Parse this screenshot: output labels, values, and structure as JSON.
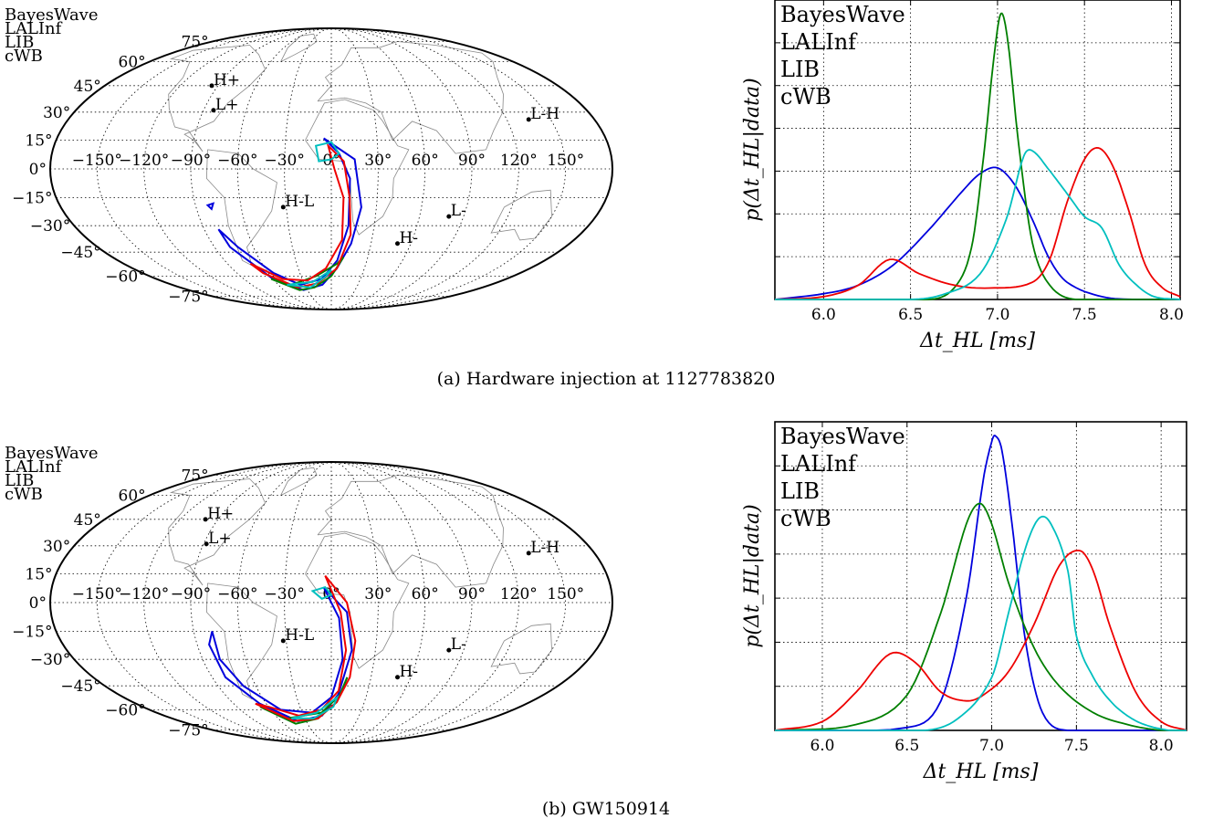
{
  "captions": {
    "a": "(a) Hardware injection at 1127783820",
    "b": "(b) GW150914"
  },
  "colors": {
    "BayesWave": "#0000dd",
    "LALInf": "#007f00",
    "LIB": "#ee0000",
    "cWB": "#00bfbf",
    "grid": "#000000",
    "coast": "#888888"
  },
  "legend": [
    "BayesWave",
    "LALInf",
    "LIB",
    "cWB"
  ],
  "skymap": {
    "lat_labels": [
      "75°",
      "60°",
      "45°",
      "30°",
      "15°",
      "0°",
      "−15°",
      "−30°",
      "−45°",
      "−60°",
      "−75°"
    ],
    "lon_labels": [
      "−150°",
      "−120°",
      "−90°",
      "−60°",
      "−30°",
      "0°",
      "30°",
      "60°",
      "90°",
      "120°",
      "150°"
    ],
    "markers": [
      "H+",
      "L+",
      "L-H",
      "H-L",
      "L-",
      "H-"
    ]
  },
  "chart_data": [
    {
      "type": "line",
      "panel": "a",
      "xlabel": "Δt_HL [ms]",
      "ylabel": "p(Δt_HL|data)",
      "xlim": [
        5.72,
        8.05
      ],
      "xticks": [
        "6.0",
        "6.5",
        "7.0",
        "7.5",
        "8.0"
      ],
      "grid": true,
      "legend_position": "top-left",
      "series": [
        {
          "name": "BayesWave",
          "x": [
            5.72,
            6.0,
            6.2,
            6.4,
            6.6,
            6.8,
            6.9,
            7.0,
            7.1,
            7.2,
            7.3,
            7.4,
            7.6,
            7.8,
            8.05
          ],
          "y": [
            0.0,
            0.02,
            0.05,
            0.12,
            0.24,
            0.38,
            0.44,
            0.46,
            0.4,
            0.28,
            0.14,
            0.06,
            0.01,
            0.0,
            0.0
          ]
        },
        {
          "name": "LALInf",
          "x": [
            5.72,
            6.6,
            6.75,
            6.85,
            6.92,
            6.98,
            7.02,
            7.06,
            7.12,
            7.2,
            7.3,
            7.45,
            8.05
          ],
          "y": [
            0.0,
            0.0,
            0.04,
            0.18,
            0.5,
            0.85,
            1.0,
            0.9,
            0.55,
            0.2,
            0.05,
            0.0,
            0.0
          ]
        },
        {
          "name": "LIB",
          "x": [
            5.72,
            6.0,
            6.2,
            6.38,
            6.55,
            6.75,
            6.95,
            7.2,
            7.3,
            7.4,
            7.5,
            7.58,
            7.66,
            7.75,
            7.85,
            7.95,
            8.05
          ],
          "y": [
            0.0,
            0.01,
            0.05,
            0.14,
            0.09,
            0.05,
            0.04,
            0.06,
            0.14,
            0.34,
            0.49,
            0.53,
            0.47,
            0.32,
            0.12,
            0.04,
            0.01
          ]
        },
        {
          "name": "cWB",
          "x": [
            5.72,
            6.5,
            6.7,
            6.9,
            7.05,
            7.15,
            7.2,
            7.3,
            7.4,
            7.5,
            7.6,
            7.7,
            7.8,
            7.9,
            8.05
          ],
          "y": [
            0.0,
            0.0,
            0.02,
            0.09,
            0.28,
            0.5,
            0.52,
            0.45,
            0.37,
            0.29,
            0.25,
            0.12,
            0.05,
            0.01,
            0.0
          ]
        }
      ]
    },
    {
      "type": "line",
      "panel": "b",
      "xlabel": "Δt_HL [ms]",
      "ylabel": "p(Δt_HL|data)",
      "xlim": [
        5.72,
        8.15
      ],
      "xticks": [
        "6.0",
        "6.5",
        "7.0",
        "7.5",
        "8.0"
      ],
      "grid": true,
      "legend_position": "top-left",
      "series": [
        {
          "name": "BayesWave",
          "x": [
            5.72,
            6.5,
            6.7,
            6.85,
            6.95,
            7.0,
            7.02,
            7.06,
            7.12,
            7.2,
            7.3,
            7.45,
            8.15
          ],
          "y": [
            0.0,
            0.01,
            0.1,
            0.45,
            0.85,
            0.98,
            1.0,
            0.95,
            0.7,
            0.3,
            0.06,
            0.0,
            0.0
          ]
        },
        {
          "name": "LALInf",
          "x": [
            5.72,
            6.2,
            6.5,
            6.7,
            6.85,
            6.93,
            7.0,
            7.1,
            7.25,
            7.4,
            7.6,
            7.8,
            8.0,
            8.15
          ],
          "y": [
            0.0,
            0.02,
            0.12,
            0.4,
            0.7,
            0.77,
            0.7,
            0.5,
            0.28,
            0.15,
            0.06,
            0.02,
            0.0,
            0.0
          ]
        },
        {
          "name": "LIB",
          "x": [
            5.72,
            6.0,
            6.2,
            6.4,
            6.55,
            6.7,
            6.85,
            6.95,
            7.1,
            7.25,
            7.4,
            7.52,
            7.6,
            7.7,
            7.85,
            8.0,
            8.15
          ],
          "y": [
            0.0,
            0.03,
            0.13,
            0.26,
            0.23,
            0.13,
            0.1,
            0.12,
            0.2,
            0.36,
            0.56,
            0.61,
            0.54,
            0.35,
            0.13,
            0.03,
            0.0
          ]
        },
        {
          "name": "cWB",
          "x": [
            5.72,
            6.6,
            6.8,
            7.0,
            7.1,
            7.2,
            7.28,
            7.35,
            7.45,
            7.5,
            7.6,
            7.7,
            7.8,
            7.9,
            8.05,
            8.15
          ],
          "y": [
            0.0,
            0.0,
            0.04,
            0.18,
            0.4,
            0.62,
            0.72,
            0.7,
            0.54,
            0.32,
            0.18,
            0.1,
            0.05,
            0.02,
            0.0,
            0.0
          ]
        }
      ]
    }
  ]
}
